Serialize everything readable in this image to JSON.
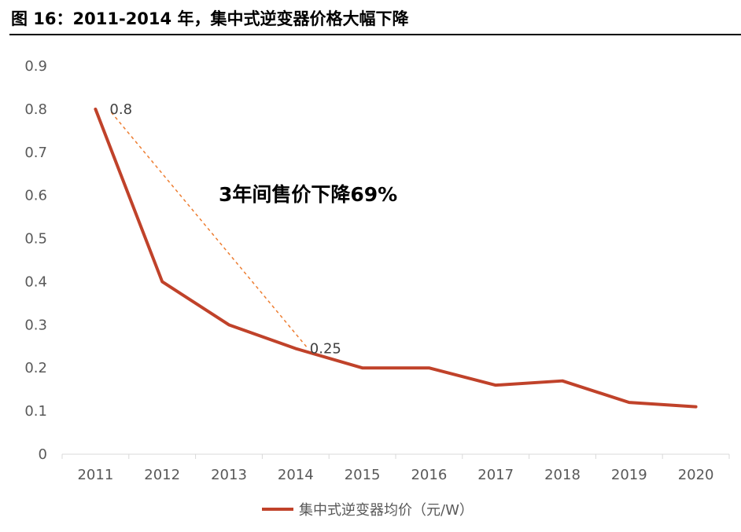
{
  "figure": {
    "title": "图 16：2011-2014 年，集中式逆变器价格大幅下降"
  },
  "chart_data": {
    "type": "line",
    "title": "",
    "xlabel": "",
    "ylabel": "",
    "categories": [
      "2011",
      "2012",
      "2013",
      "2014",
      "2015",
      "2016",
      "2017",
      "2018",
      "2019",
      "2020"
    ],
    "series": [
      {
        "name": "集中式逆变器均价（元/W）",
        "values": [
          0.8,
          0.4,
          0.3,
          0.245,
          0.2,
          0.2,
          0.16,
          0.17,
          0.12,
          0.11
        ],
        "color": "#C0422A"
      }
    ],
    "ylim": [
      0,
      0.9
    ],
    "yticks": [
      "0",
      "0.1",
      "0.2",
      "0.3",
      "0.4",
      "0.5",
      "0.6",
      "0.7",
      "0.8",
      "0.9"
    ],
    "grid": false,
    "legend_position": "bottom",
    "data_labels": [
      {
        "category": "2011",
        "text": "0.8"
      },
      {
        "category": "2014",
        "text": "0.25"
      }
    ],
    "annotation": {
      "text": "3年间售价下降69%",
      "from_category": "2011",
      "to_category": "2014",
      "line_color": "#ED7D31"
    }
  }
}
